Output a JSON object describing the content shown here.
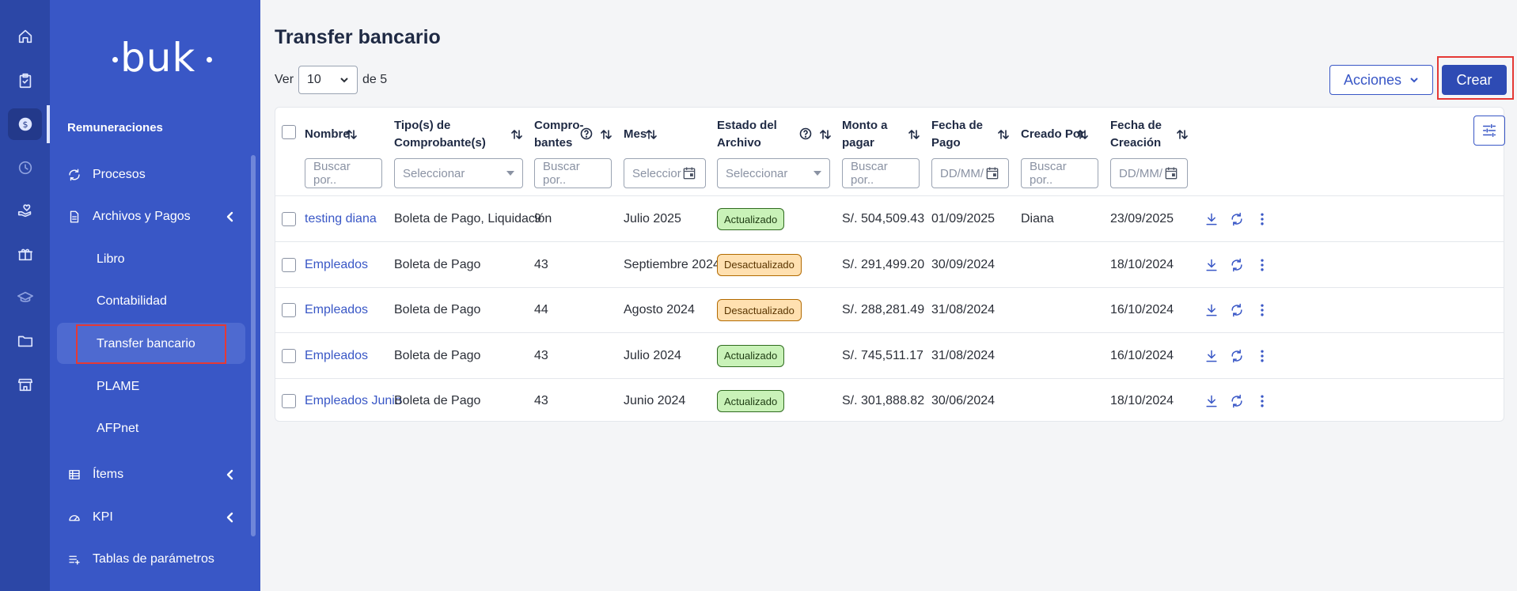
{
  "sidebar": {
    "logo": "buk",
    "section_title": "Remuneraciones",
    "items": [
      {
        "label": "Procesos",
        "icon": "refresh-icon"
      },
      {
        "label": "Archivos y Pagos",
        "icon": "file-icon"
      },
      {
        "label": "Ítems",
        "icon": "list-icon"
      },
      {
        "label": "KPI",
        "icon": "gauge-icon"
      },
      {
        "label": "Tablas de parámetros",
        "icon": "playlist-add-icon"
      }
    ],
    "subitems": [
      {
        "label": "Libro"
      },
      {
        "label": "Contabilidad"
      },
      {
        "label": "Transfer bancario",
        "active": true
      },
      {
        "label": "PLAME"
      },
      {
        "label": "AFPnet"
      }
    ]
  },
  "rail": [
    "home-icon",
    "clipboard-icon",
    "dollar-icon",
    "clock-icon",
    "hand-heart-icon",
    "gift-icon",
    "graduation-cap-icon",
    "folder-icon",
    "store-icon"
  ],
  "page": {
    "title": "Transfer bancario",
    "ver_label": "Ver",
    "per_page": "10",
    "of_label": "de 5",
    "acciones_label": "Acciones",
    "crear_label": "Crear"
  },
  "table": {
    "headers": {
      "nombre": "Nombre",
      "tipo_l1": "Tipo(s) de",
      "tipo_l2": "Comprobante(s)",
      "comp_l1": "Compro-",
      "comp_l2": "bantes",
      "mes": "Mes",
      "estado_l1": "Estado del",
      "estado_l2": "Archivo",
      "monto_l1": "Monto a",
      "monto_l2": "pagar",
      "fpago_l1": "Fecha de",
      "fpago_l2": "Pago",
      "creado": "Creado Por",
      "fcrea_l1": "Fecha de",
      "fcrea_l2": "Creación"
    },
    "filters": {
      "nombre": "Buscar por..",
      "tipo": "Seleccionar",
      "comp": "Buscar por..",
      "mes": "Seleccior",
      "estado": "Seleccionar",
      "monto": "Buscar por..",
      "fpago": "DD/MM/",
      "creado": "Buscar por..",
      "fcrea": "DD/MM/"
    },
    "rows": [
      {
        "nombre": "testing diana",
        "tipo": "Boleta de Pago, Liquidación",
        "comp": "9",
        "mes": "Julio 2025",
        "estado": "Actualizado",
        "estado_kind": "ok",
        "monto": "S/. 504,509.43",
        "fpago": "01/09/2025",
        "creado": "Diana",
        "fcrea": "23/09/2025"
      },
      {
        "nombre": "Empleados",
        "tipo": "Boleta de Pago",
        "comp": "43",
        "mes": "Septiembre 2024",
        "estado": "Desactualizado",
        "estado_kind": "warn",
        "monto": "S/. 291,499.20",
        "fpago": "30/09/2024",
        "creado": "",
        "fcrea": "18/10/2024"
      },
      {
        "nombre": "Empleados",
        "tipo": "Boleta de Pago",
        "comp": "44",
        "mes": "Agosto 2024",
        "estado": "Desactualizado",
        "estado_kind": "warn",
        "monto": "S/. 288,281.49",
        "fpago": "31/08/2024",
        "creado": "",
        "fcrea": "16/10/2024"
      },
      {
        "nombre": "Empleados",
        "tipo": "Boleta de Pago",
        "comp": "43",
        "mes": "Julio 2024",
        "estado": "Actualizado",
        "estado_kind": "ok",
        "monto": "S/. 745,511.17",
        "fpago": "31/08/2024",
        "creado": "",
        "fcrea": "16/10/2024"
      },
      {
        "nombre": "Empleados Junio",
        "tipo": "Boleta de Pago",
        "comp": "43",
        "mes": "Junio 2024",
        "estado": "Actualizado",
        "estado_kind": "ok",
        "monto": "S/. 301,888.82",
        "fpago": "30/06/2024",
        "creado": "",
        "fcrea": "18/10/2024"
      }
    ]
  }
}
